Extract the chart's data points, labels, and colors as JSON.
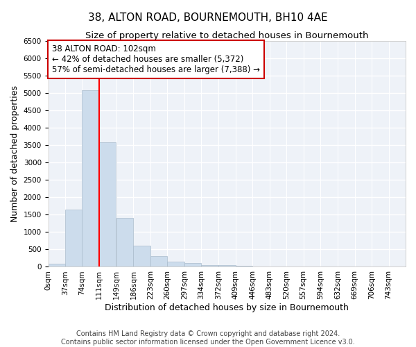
{
  "title": "38, ALTON ROAD, BOURNEMOUTH, BH10 4AE",
  "subtitle": "Size of property relative to detached houses in Bournemouth",
  "xlabel": "Distribution of detached houses by size in Bournemouth",
  "ylabel": "Number of detached properties",
  "bar_color": "#ccdcec",
  "bar_edge_color": "#aabccc",
  "background_color": "#eef2f8",
  "grid_color": "#ffffff",
  "red_line_x": 111,
  "bin_edges": [
    0,
    37,
    74,
    111,
    149,
    186,
    223,
    260,
    297,
    334,
    372,
    409,
    446,
    483,
    520,
    557,
    594,
    632,
    669,
    706,
    743,
    780
  ],
  "bar_heights": [
    90,
    1650,
    5080,
    3580,
    1400,
    600,
    300,
    150,
    100,
    50,
    50,
    30,
    0,
    0,
    0,
    0,
    0,
    0,
    0,
    0,
    0
  ],
  "tick_labels": [
    "0sqm",
    "37sqm",
    "74sqm",
    "111sqm",
    "149sqm",
    "186sqm",
    "223sqm",
    "260sqm",
    "297sqm",
    "334sqm",
    "372sqm",
    "409sqm",
    "446sqm",
    "483sqm",
    "520sqm",
    "557sqm",
    "594sqm",
    "632sqm",
    "669sqm",
    "706sqm",
    "743sqm"
  ],
  "ylim": [
    0,
    6500
  ],
  "yticks": [
    0,
    500,
    1000,
    1500,
    2000,
    2500,
    3000,
    3500,
    4000,
    4500,
    5000,
    5500,
    6000,
    6500
  ],
  "annotation_text": "38 ALTON ROAD: 102sqm\n← 42% of detached houses are smaller (5,372)\n57% of semi-detached houses are larger (7,388) →",
  "annotation_box_color": "#ffffff",
  "annotation_box_edge_color": "#cc0000",
  "footer_line1": "Contains HM Land Registry data © Crown copyright and database right 2024.",
  "footer_line2": "Contains public sector information licensed under the Open Government Licence v3.0.",
  "title_fontsize": 11,
  "subtitle_fontsize": 9.5,
  "axis_label_fontsize": 9,
  "tick_fontsize": 7.5,
  "annotation_fontsize": 8.5,
  "footer_fontsize": 7
}
